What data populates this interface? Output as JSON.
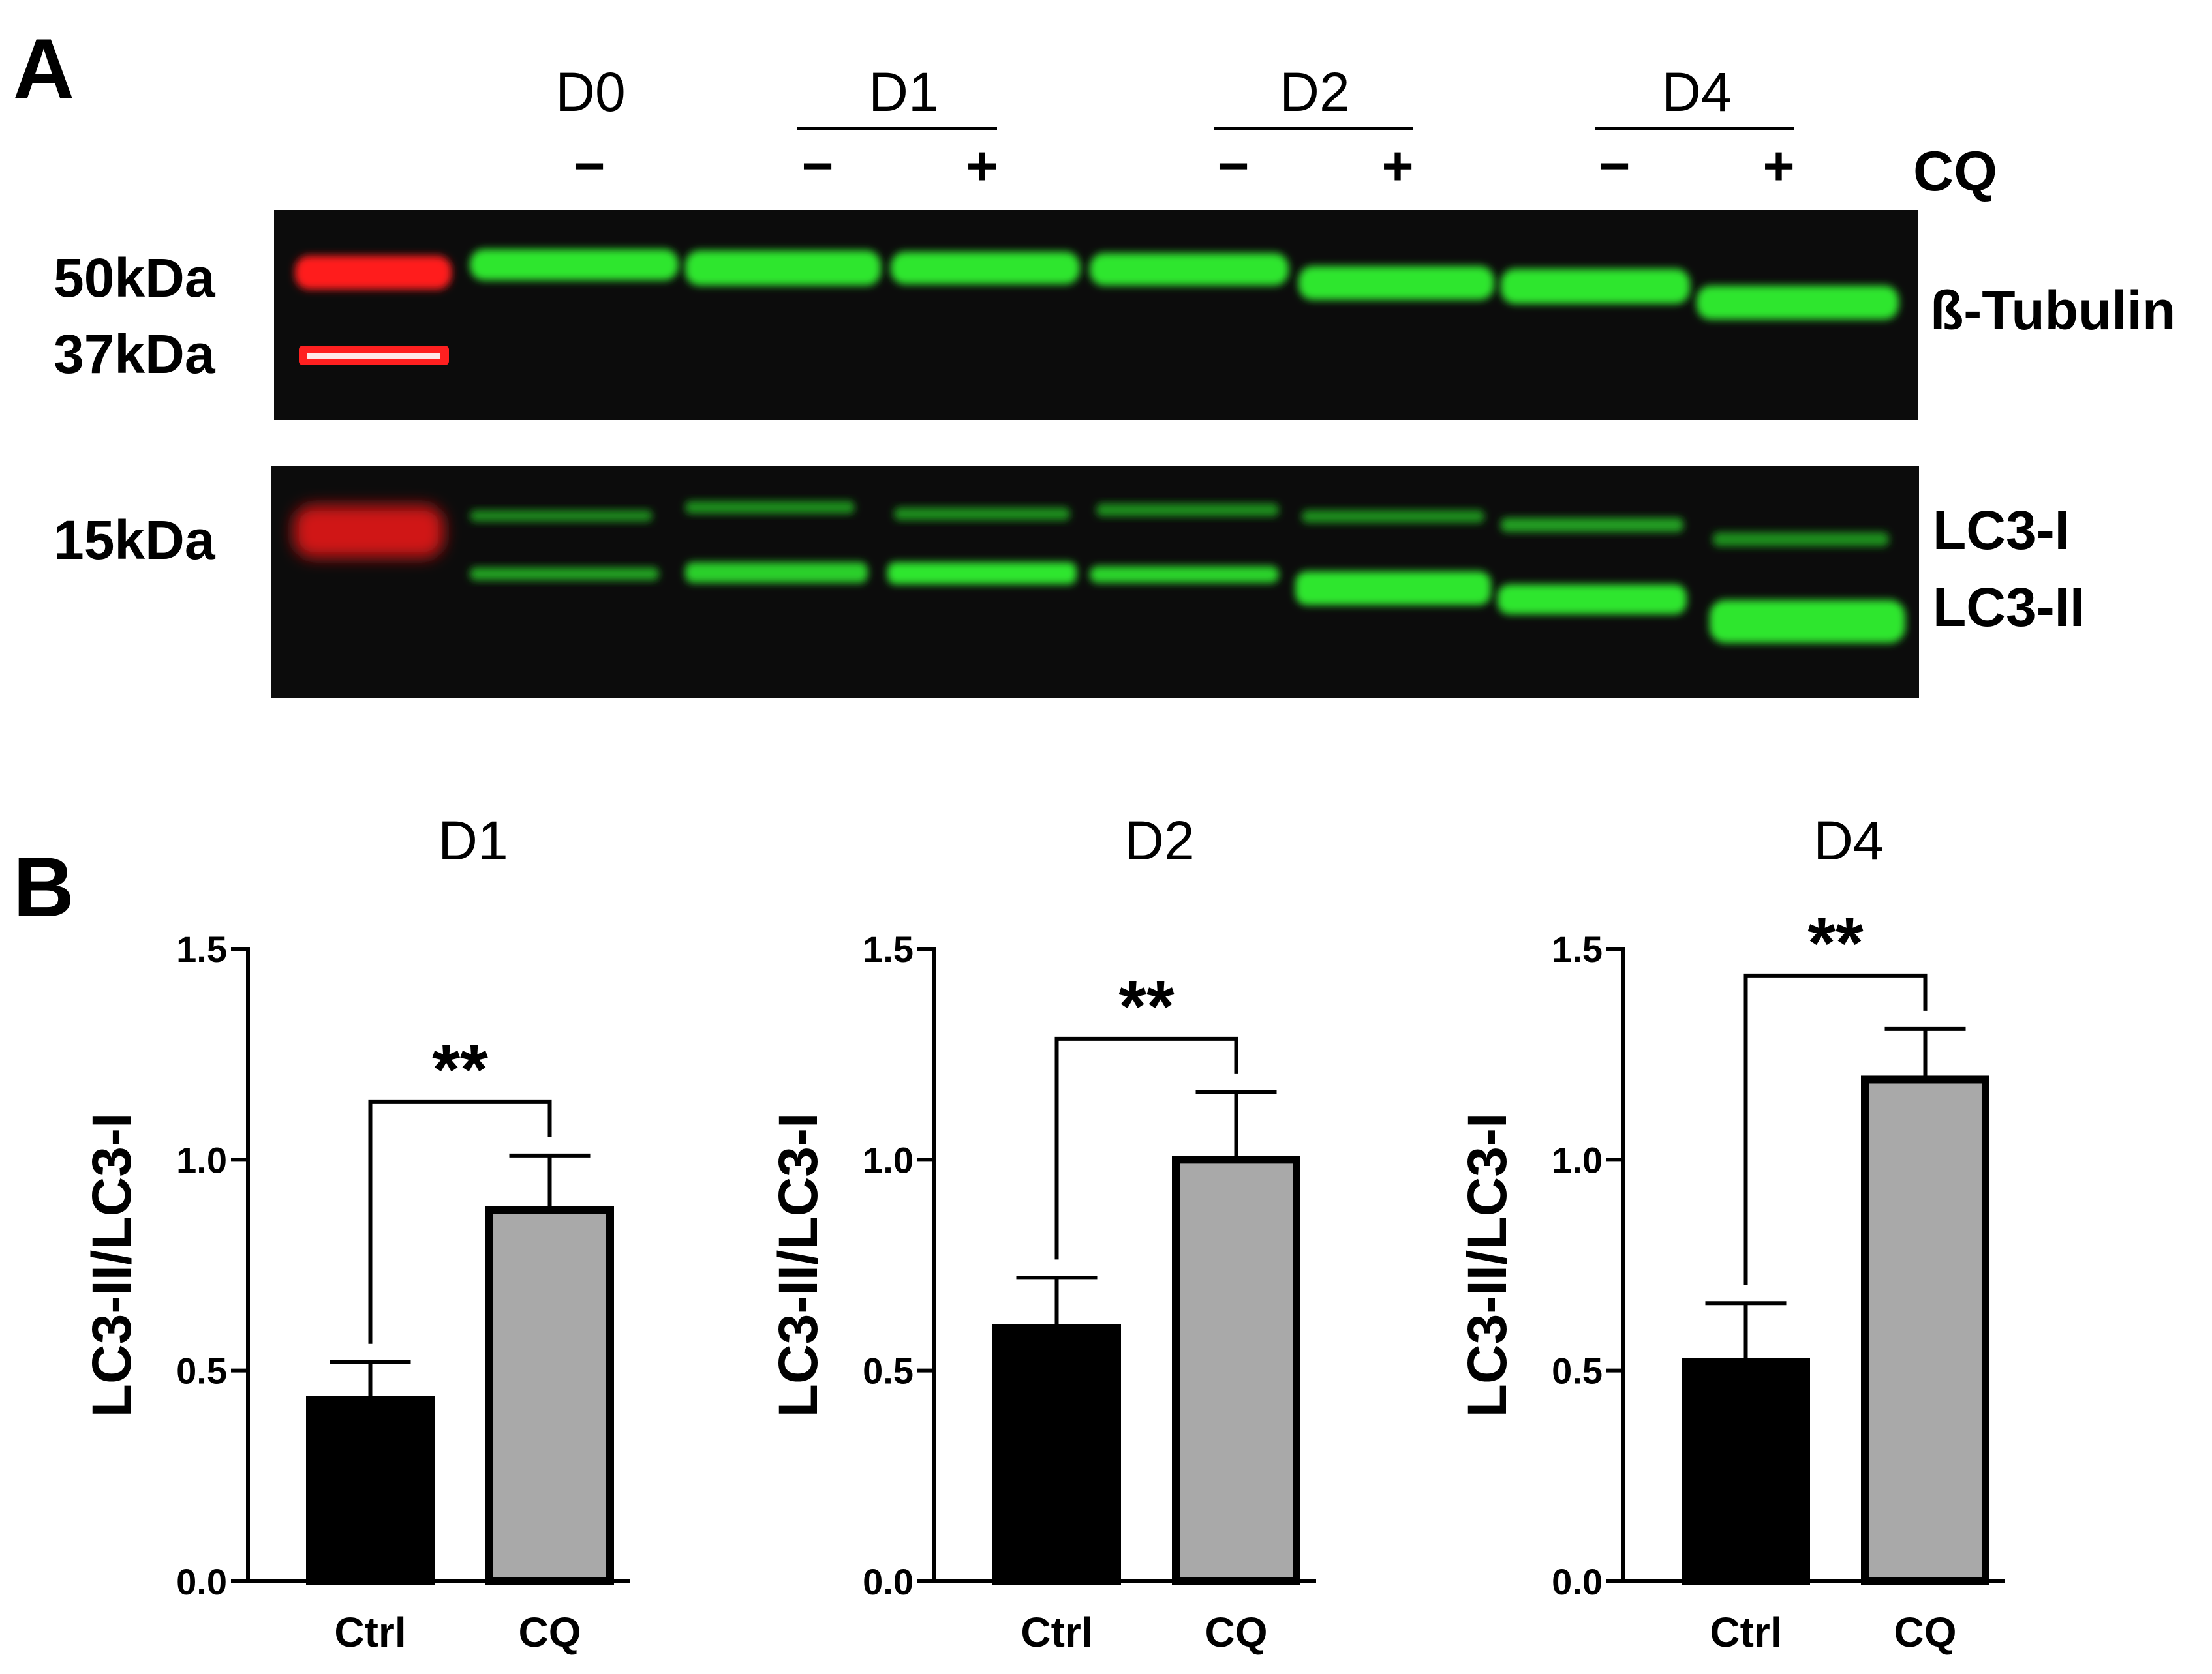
{
  "panel_a": {
    "letter": "A",
    "groups": [
      {
        "label": "D0",
        "treatments": [
          "−"
        ]
      },
      {
        "label": "D1",
        "treatments": [
          "−",
          "+"
        ]
      },
      {
        "label": "D2",
        "treatments": [
          "−",
          "+"
        ]
      },
      {
        "label": "D4",
        "treatments": [
          "−",
          "+"
        ]
      }
    ],
    "treatment_header": "CQ",
    "markers": [
      "50kDa",
      "37kDa",
      "15kDa"
    ],
    "bands": [
      "ß-Tubulin",
      "LC3-I",
      "LC3-II"
    ],
    "colors": {
      "blot_background": "#0c0c0c",
      "band": "#2ee62e",
      "ladder": "#ff1f1f"
    }
  },
  "panel_b": {
    "letter": "B",
    "significance": "**"
  },
  "chart_data": [
    {
      "type": "bar",
      "title": "D1",
      "ylabel": "LC3-II/LC3-I",
      "categories": [
        "Ctrl",
        "CQ"
      ],
      "values": [
        0.43,
        0.88
      ],
      "errors": [
        0.09,
        0.13
      ],
      "colors": [
        "#000000",
        "#a9a9a9"
      ],
      "ylim": [
        0,
        1.5
      ],
      "yticks": [
        "0.0",
        "0.5",
        "1.0",
        "1.5"
      ],
      "significance": "**"
    },
    {
      "type": "bar",
      "title": "D2",
      "ylabel": "LC3-II/LC3-I",
      "categories": [
        "Ctrl",
        "CQ"
      ],
      "values": [
        0.6,
        1.0
      ],
      "errors": [
        0.12,
        0.16
      ],
      "colors": [
        "#000000",
        "#a9a9a9"
      ],
      "ylim": [
        0,
        1.5
      ],
      "yticks": [
        "0.0",
        "0.5",
        "1.0",
        "1.5"
      ],
      "significance": "**"
    },
    {
      "type": "bar",
      "title": "D4",
      "ylabel": "LC3-II/LC3-I",
      "categories": [
        "Ctrl",
        "CQ"
      ],
      "values": [
        0.52,
        1.19
      ],
      "errors": [
        0.14,
        0.12
      ],
      "colors": [
        "#000000",
        "#a9a9a9"
      ],
      "ylim": [
        0,
        1.5
      ],
      "yticks": [
        "0.0",
        "0.5",
        "1.0",
        "1.5"
      ],
      "significance": "**"
    }
  ]
}
